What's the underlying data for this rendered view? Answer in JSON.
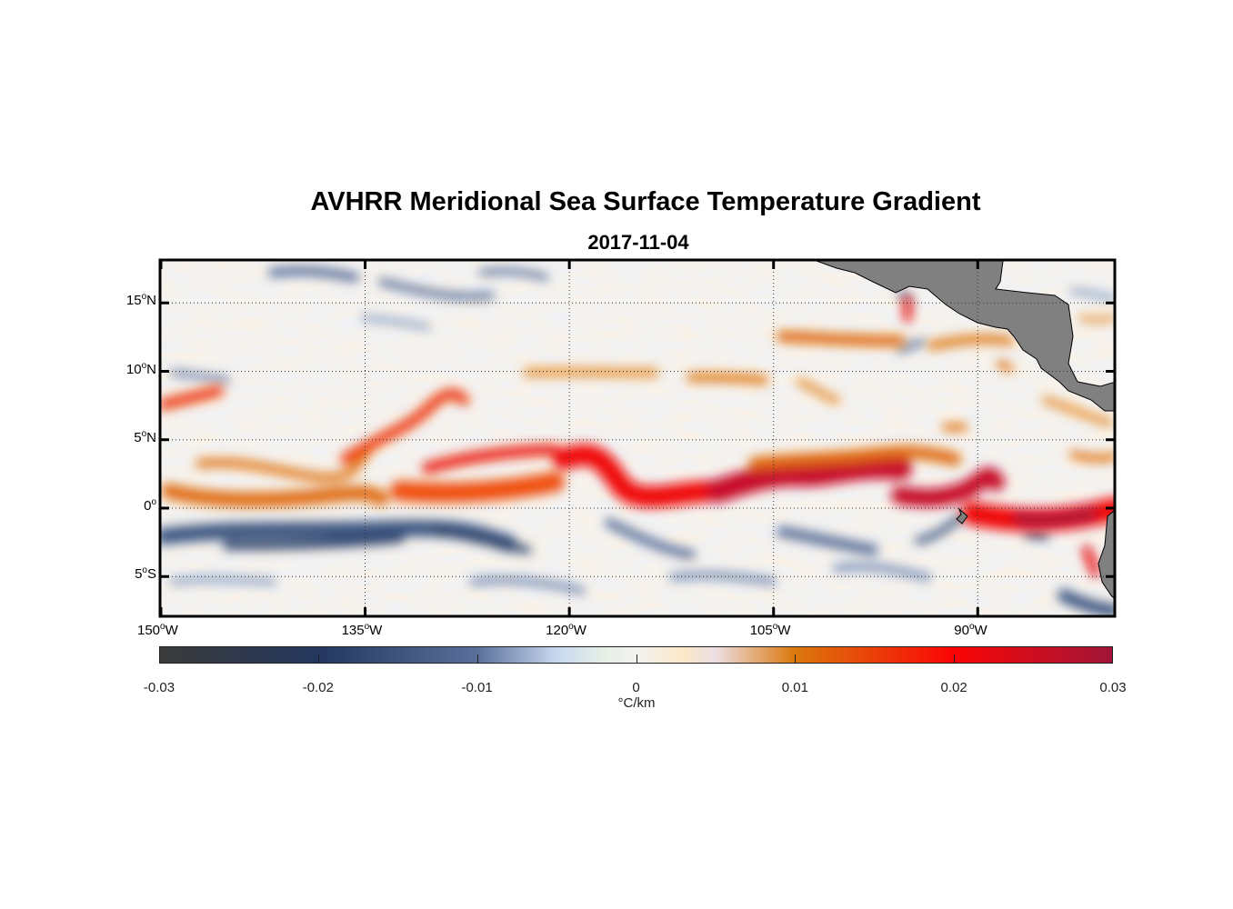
{
  "chart_data": {
    "type": "heatmap",
    "title": "AVHRR Meridional Sea Surface Temperature Gradient",
    "subtitle": "2017-11-04",
    "lon_range": [
      -150,
      -80
    ],
    "lat_range": [
      -8,
      18
    ],
    "lon_ticks": [
      {
        "value": -150,
        "num": "150",
        "hemi": "W"
      },
      {
        "value": -135,
        "num": "135",
        "hemi": "W"
      },
      {
        "value": -120,
        "num": "120",
        "hemi": "W"
      },
      {
        "value": -105,
        "num": "105",
        "hemi": "W"
      },
      {
        "value": -90,
        "num": "90",
        "hemi": "W"
      }
    ],
    "lat_ticks": [
      {
        "value": 15,
        "num": "15",
        "hemi": "N"
      },
      {
        "value": 10,
        "num": "10",
        "hemi": "N"
      },
      {
        "value": 5,
        "num": "5",
        "hemi": "N"
      },
      {
        "value": 0,
        "num": "0",
        "hemi": ""
      },
      {
        "value": -5,
        "num": "5",
        "hemi": "S"
      }
    ],
    "grid": true,
    "colorbar": {
      "range": [
        -0.03,
        0.03
      ],
      "ticks": [
        "-0.03",
        "-0.02",
        "-0.01",
        "0",
        "0.01",
        "0.02",
        "0.03"
      ],
      "tick_values": [
        -0.03,
        -0.02,
        -0.01,
        0,
        0.01,
        0.02,
        0.03
      ],
      "label": "°C/km",
      "placement": "bottom",
      "stops": [
        {
          "v": -0.03,
          "c": "#3a3a3a"
        },
        {
          "v": -0.02,
          "c": "#24375e"
        },
        {
          "v": -0.01,
          "c": "#5a6f9a"
        },
        {
          "v": -0.005,
          "c": "#c8d8f0"
        },
        {
          "v": -0.002,
          "c": "#e6efe6"
        },
        {
          "v": 0,
          "c": "#f2f2f0"
        },
        {
          "v": 0.003,
          "c": "#fbe8c8"
        },
        {
          "v": 0.005,
          "c": "#ecdfe2"
        },
        {
          "v": 0.01,
          "c": "#db780c"
        },
        {
          "v": 0.02,
          "c": "#fb0505"
        },
        {
          "v": 0.03,
          "c": "#a01538"
        }
      ]
    },
    "land_color": "#808080"
  }
}
